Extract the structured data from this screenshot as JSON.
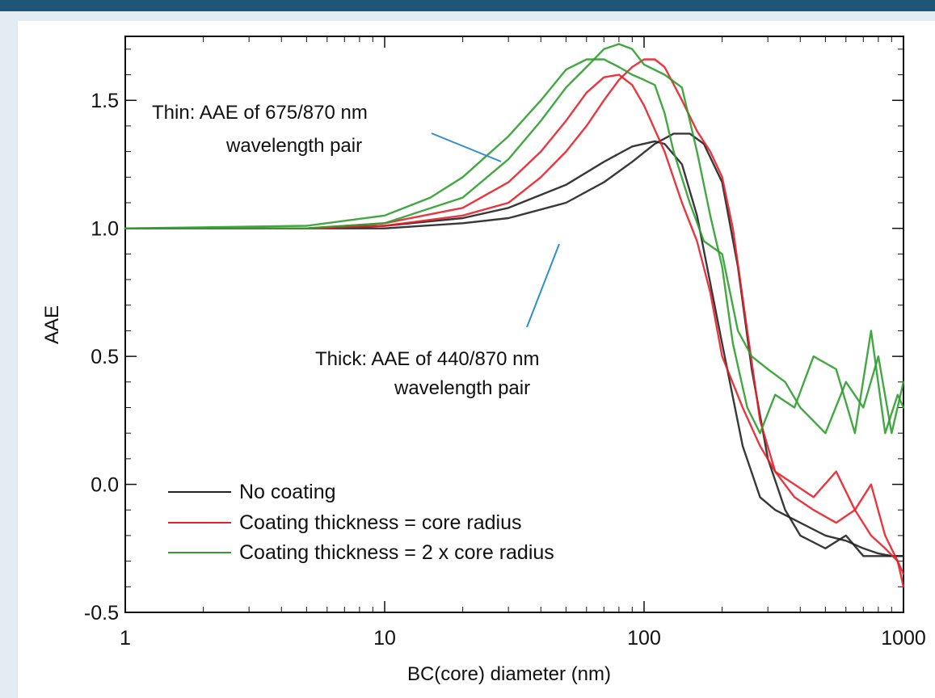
{
  "colors": {
    "topbar": "#1d5775",
    "background": "#e3ebf3",
    "no_coating": "#222222",
    "core_radius": "#e8202a",
    "two_core_radius": "#2e9e2e",
    "annotation_line": "#2b8fd0"
  },
  "chart_data": {
    "type": "line",
    "xlabel": "BC(core) diameter (nm)",
    "ylabel": "AAE",
    "x_scale": "log",
    "xlim": [
      1,
      1000
    ],
    "ylim": [
      -0.5,
      1.75
    ],
    "x_ticks": [
      1,
      10,
      100,
      1000
    ],
    "x_tick_labels": [
      "1",
      "10",
      "100",
      "1000"
    ],
    "y_ticks": [
      -0.5,
      0.0,
      0.5,
      1.0,
      1.5
    ],
    "y_tick_labels": [
      "-0.5",
      "0.0",
      "0.5",
      "1.0",
      "1.5"
    ],
    "grid": false,
    "legend_position": "bottom-left",
    "legend": [
      {
        "label": "No coating",
        "color_key": "no_coating"
      },
      {
        "label": "Coating thickness = core radius",
        "color_key": "core_radius"
      },
      {
        "label": "Coating thickness = 2 x core radius",
        "color_key": "two_core_radius"
      }
    ],
    "annotations": [
      {
        "lines": [
          "Thin:  AAE of 675/870 nm",
          "wavelength pair"
        ]
      },
      {
        "lines": [
          "Thick: AAE of 440/870 nm",
          "wavelength pair"
        ]
      }
    ],
    "series": [
      {
        "legend": "No coating",
        "wavelength_pair": "675/870 nm",
        "color_key": "no_coating",
        "x": [
          1,
          5,
          10,
          20,
          30,
          50,
          70,
          90,
          110,
          120,
          140,
          160,
          200,
          240,
          280,
          320,
          400,
          500,
          600,
          700,
          800,
          900,
          1000
        ],
        "y": [
          1.0,
          1.0,
          1.01,
          1.04,
          1.08,
          1.17,
          1.26,
          1.32,
          1.34,
          1.33,
          1.25,
          1.05,
          0.55,
          0.15,
          -0.05,
          -0.1,
          -0.15,
          -0.2,
          -0.22,
          -0.25,
          -0.27,
          -0.28,
          -0.28
        ]
      },
      {
        "legend": "No coating",
        "wavelength_pair": "440/870 nm",
        "color_key": "no_coating",
        "x": [
          1,
          5,
          10,
          20,
          30,
          50,
          70,
          90,
          110,
          130,
          150,
          170,
          200,
          230,
          260,
          300,
          350,
          400,
          500,
          600,
          700,
          800,
          900,
          1000
        ],
        "y": [
          1.0,
          1.0,
          1.0,
          1.02,
          1.04,
          1.1,
          1.18,
          1.26,
          1.33,
          1.37,
          1.37,
          1.33,
          1.18,
          0.85,
          0.45,
          0.1,
          -0.1,
          -0.2,
          -0.25,
          -0.2,
          -0.28,
          -0.28,
          -0.28,
          -0.28
        ]
      },
      {
        "legend": "Coating thickness = core radius",
        "wavelength_pair": "675/870 nm",
        "color_key": "core_radius",
        "x": [
          1,
          5,
          10,
          20,
          30,
          40,
          50,
          60,
          70,
          80,
          90,
          100,
          120,
          140,
          160,
          180,
          200,
          240,
          280,
          320,
          380,
          450,
          550,
          650,
          750,
          850,
          950,
          1000
        ],
        "y": [
          1.0,
          1.0,
          1.02,
          1.08,
          1.18,
          1.3,
          1.42,
          1.53,
          1.59,
          1.6,
          1.56,
          1.48,
          1.3,
          1.1,
          0.95,
          0.75,
          0.5,
          0.3,
          0.15,
          0.05,
          -0.05,
          -0.1,
          -0.15,
          -0.1,
          -0.2,
          -0.25,
          -0.3,
          -0.35
        ]
      },
      {
        "legend": "Coating thickness = core radius",
        "wavelength_pair": "440/870 nm",
        "color_key": "core_radius",
        "x": [
          1,
          5,
          10,
          20,
          30,
          40,
          50,
          60,
          70,
          80,
          90,
          100,
          110,
          120,
          140,
          160,
          180,
          200,
          220,
          250,
          280,
          320,
          380,
          450,
          550,
          650,
          750,
          850,
          950,
          1000
        ],
        "y": [
          1.0,
          1.0,
          1.01,
          1.05,
          1.1,
          1.2,
          1.3,
          1.4,
          1.5,
          1.58,
          1.63,
          1.66,
          1.66,
          1.63,
          1.5,
          1.38,
          1.3,
          1.2,
          1.0,
          0.6,
          0.25,
          0.05,
          0.0,
          -0.05,
          0.05,
          -0.1,
          0.0,
          -0.2,
          -0.3,
          -0.4
        ]
      },
      {
        "legend": "Coating thickness = 2 x core radius",
        "wavelength_pair": "675/870 nm",
        "color_key": "two_core_radius",
        "x": [
          1,
          5,
          10,
          15,
          20,
          30,
          40,
          50,
          60,
          70,
          80,
          90,
          100,
          110,
          120,
          130,
          150,
          170,
          200,
          230,
          260,
          300,
          350,
          400,
          500,
          600,
          700,
          800,
          900,
          1000
        ],
        "y": [
          1.0,
          1.01,
          1.05,
          1.12,
          1.2,
          1.36,
          1.5,
          1.62,
          1.66,
          1.66,
          1.63,
          1.6,
          1.58,
          1.56,
          1.45,
          1.3,
          1.1,
          0.95,
          0.9,
          0.6,
          0.5,
          0.45,
          0.4,
          0.3,
          0.2,
          0.4,
          0.3,
          0.5,
          0.2,
          0.4
        ]
      },
      {
        "legend": "Coating thickness = 2 x core radius",
        "wavelength_pair": "440/870 nm",
        "color_key": "two_core_radius",
        "x": [
          1,
          5,
          10,
          20,
          30,
          40,
          50,
          60,
          70,
          80,
          90,
          100,
          120,
          140,
          160,
          180,
          200,
          220,
          250,
          280,
          320,
          380,
          450,
          550,
          650,
          750,
          850,
          950,
          1000
        ],
        "y": [
          1.0,
          1.0,
          1.02,
          1.12,
          1.27,
          1.42,
          1.55,
          1.63,
          1.7,
          1.72,
          1.7,
          1.64,
          1.6,
          1.55,
          1.3,
          1.05,
          0.85,
          0.55,
          0.3,
          0.2,
          0.35,
          0.3,
          0.5,
          0.45,
          0.2,
          0.6,
          0.2,
          0.35,
          0.3
        ]
      }
    ]
  }
}
